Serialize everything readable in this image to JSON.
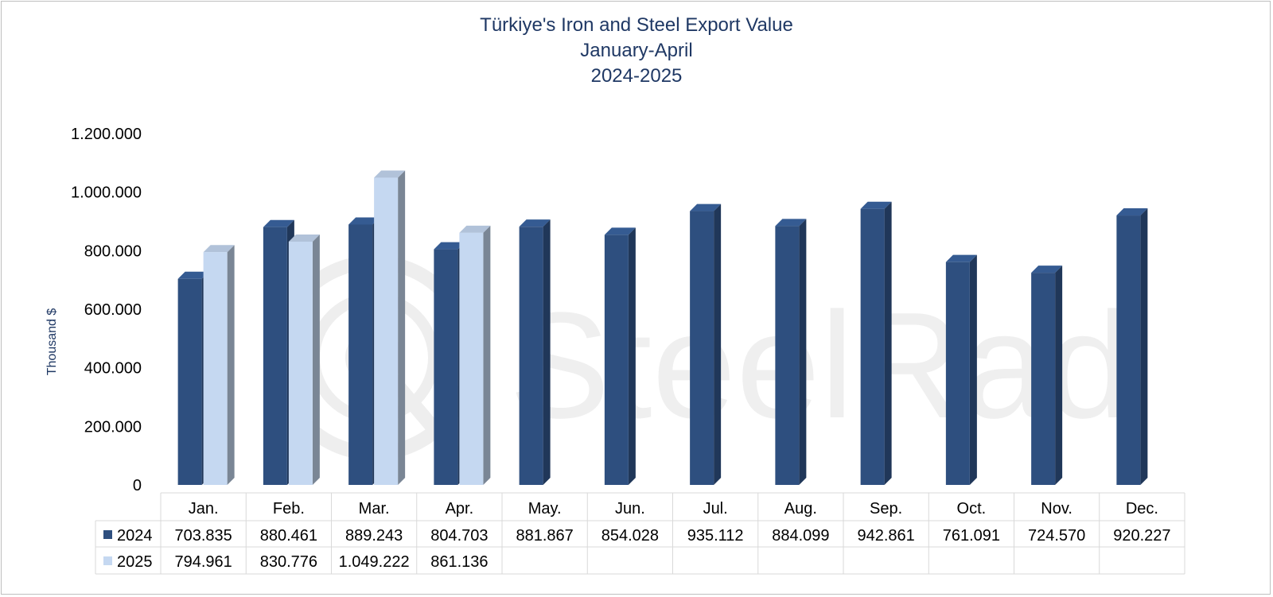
{
  "chart_data": {
    "type": "bar",
    "title_lines": [
      "Türkiye's Iron and Steel Export Value",
      "January-April",
      "2024-2025"
    ],
    "ylabel": "Thousand $",
    "ylim": [
      0,
      1200000
    ],
    "yticks": [
      0,
      200000,
      400000,
      600000,
      800000,
      1000000,
      1200000
    ],
    "ytick_labels": [
      "0",
      "200.000",
      "400.000",
      "600.000",
      "800.000",
      "1.000.000",
      "1.200.000"
    ],
    "categories": [
      "Jan.",
      "Feb.",
      "Mar.",
      "Apr.",
      "May.",
      "Jun.",
      "Jul.",
      "Aug.",
      "Sep.",
      "Oct.",
      "Nov.",
      "Dec."
    ],
    "series": [
      {
        "name": "2024",
        "color": "#2e4f7f",
        "values": [
          703835,
          880461,
          889243,
          804703,
          881867,
          854028,
          935112,
          884099,
          942861,
          761091,
          724570,
          920227
        ],
        "labels": [
          "703.835",
          "880.461",
          "889.243",
          "804.703",
          "881.867",
          "854.028",
          "935.112",
          "884.099",
          "942.861",
          "761.091",
          "724.570",
          "920.227"
        ]
      },
      {
        "name": "2025",
        "color": "#c5d8f1",
        "values": [
          794961,
          830776,
          1049222,
          861136,
          null,
          null,
          null,
          null,
          null,
          null,
          null,
          null
        ],
        "labels": [
          "794.961",
          "830.776",
          "1.049.222",
          "861.136",
          "",
          "",
          "",
          "",
          "",
          "",
          "",
          ""
        ]
      }
    ],
    "data_table": true,
    "grid": false
  },
  "watermark": {
    "text": "SteelRadar"
  },
  "colors": {
    "title": "#1f3864",
    "series_2024": "#2e4f7f",
    "series_2025": "#c5d8f1",
    "table_border": "#d9d9d9"
  }
}
